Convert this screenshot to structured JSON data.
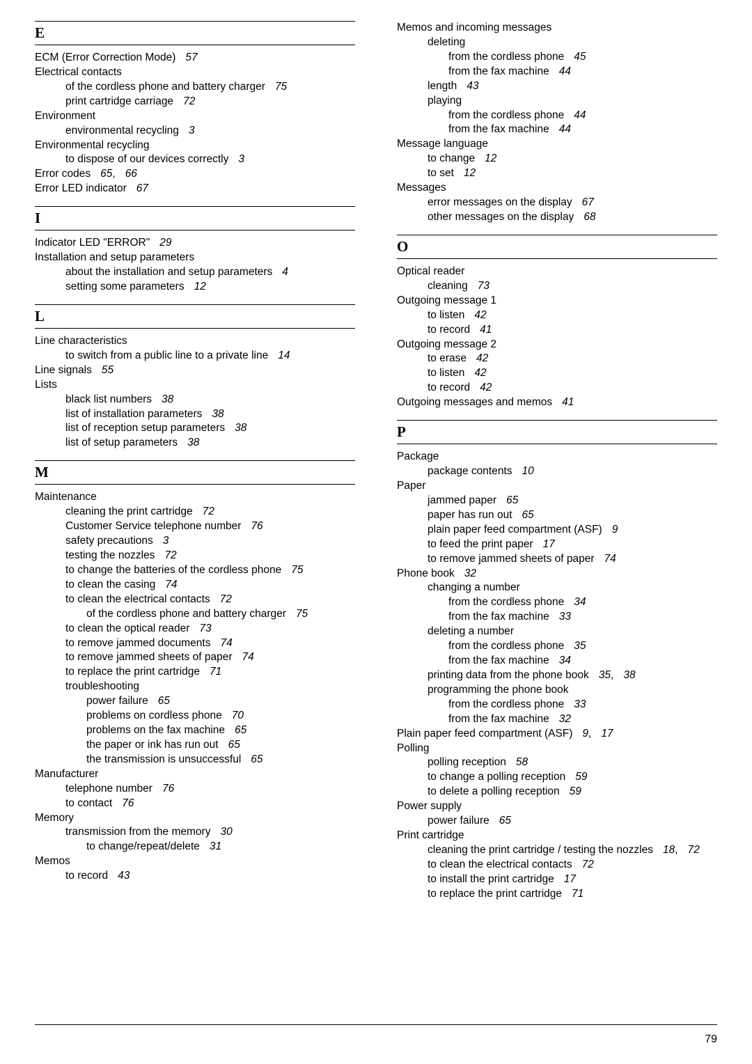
{
  "footer_page": "79",
  "left": [
    {
      "type": "letter",
      "text": "E",
      "first": true
    },
    {
      "type": "l0",
      "text": "ECM (Error Correction Mode)",
      "pg": "57"
    },
    {
      "type": "l0",
      "text": "Electrical contacts"
    },
    {
      "type": "l1",
      "text": "of the cordless phone and battery charger",
      "pg": "75"
    },
    {
      "type": "l1",
      "text": "print cartridge carriage",
      "pg": "72"
    },
    {
      "type": "l0",
      "text": "Environment"
    },
    {
      "type": "l1",
      "text": "environmental recycling",
      "pg": "3"
    },
    {
      "type": "l0",
      "text": "Environmental recycling"
    },
    {
      "type": "l1",
      "text": "to dispose of our devices correctly",
      "pg": "3"
    },
    {
      "type": "l0",
      "text": "Error codes",
      "pg": "65, 66"
    },
    {
      "type": "l0",
      "text": "Error LED indicator",
      "pg": "67"
    },
    {
      "type": "letter",
      "text": "I"
    },
    {
      "type": "l0",
      "text": "Indicator LED  \"ERROR\"",
      "pg": "29"
    },
    {
      "type": "l0",
      "text": "Installation and setup parameters"
    },
    {
      "type": "l1",
      "text": "about the installation and setup parameters",
      "pg": "4"
    },
    {
      "type": "l1",
      "text": "setting some parameters",
      "pg": "12"
    },
    {
      "type": "letter",
      "text": "L"
    },
    {
      "type": "l0",
      "text": "Line characteristics"
    },
    {
      "type": "l1",
      "text": "to switch from a public line to a private line",
      "pg": "14"
    },
    {
      "type": "l0",
      "text": "Line signals",
      "pg": "55"
    },
    {
      "type": "l0",
      "text": "Lists"
    },
    {
      "type": "l1",
      "text": "black list numbers",
      "pg": "38"
    },
    {
      "type": "l1",
      "text": "list of installation parameters",
      "pg": "38"
    },
    {
      "type": "l1",
      "text": "list of reception setup parameters",
      "pg": "38"
    },
    {
      "type": "l1",
      "text": "list of setup parameters",
      "pg": "38"
    },
    {
      "type": "letter",
      "text": "M"
    },
    {
      "type": "l0",
      "text": "Maintenance"
    },
    {
      "type": "l1",
      "text": "cleaning the print cartridge",
      "pg": "72"
    },
    {
      "type": "l1",
      "text": "Customer Service telephone number",
      "pg": "76"
    },
    {
      "type": "l1",
      "text": "safety precautions",
      "pg": "3"
    },
    {
      "type": "l1",
      "text": "testing the nozzles",
      "pg": "72"
    },
    {
      "type": "l1",
      "text": "to change the batteries of the cordless phone",
      "pg": "75"
    },
    {
      "type": "l1",
      "text": "to clean the casing",
      "pg": "74"
    },
    {
      "type": "l1",
      "text": "to clean the electrical contacts",
      "pg": "72"
    },
    {
      "type": "l2",
      "text": "of the cordless phone and battery charger",
      "pg": "75"
    },
    {
      "type": "l1",
      "text": "to clean the optical reader",
      "pg": "73"
    },
    {
      "type": "l1",
      "text": "to remove jammed documents",
      "pg": "74"
    },
    {
      "type": "l1",
      "text": "to remove jammed sheets of paper",
      "pg": "74"
    },
    {
      "type": "l1",
      "text": "to replace the print cartridge",
      "pg": "71"
    },
    {
      "type": "l1",
      "text": "troubleshooting"
    },
    {
      "type": "l2",
      "text": "power failure",
      "pg": "65"
    },
    {
      "type": "l2",
      "text": "problems on cordless phone",
      "pg": "70"
    },
    {
      "type": "l2",
      "text": "problems on the fax machine",
      "pg": "65"
    },
    {
      "type": "l2",
      "text": "the paper or ink has run out",
      "pg": "65"
    },
    {
      "type": "l2",
      "text": "the transmission is unsuccessful",
      "pg": "65"
    },
    {
      "type": "l0",
      "text": "Manufacturer"
    },
    {
      "type": "l1",
      "text": "telephone number",
      "pg": "76"
    },
    {
      "type": "l1",
      "text": "to contact",
      "pg": "76"
    },
    {
      "type": "l0",
      "text": "Memory"
    },
    {
      "type": "l1",
      "text": "transmission from the memory",
      "pg": "30"
    },
    {
      "type": "l2",
      "text": "to change/repeat/delete",
      "pg": "31"
    },
    {
      "type": "l0",
      "text": "Memos"
    },
    {
      "type": "l1",
      "text": "to record",
      "pg": "43"
    }
  ],
  "right": [
    {
      "type": "l0",
      "text": "Memos and incoming messages"
    },
    {
      "type": "l1",
      "text": "deleting"
    },
    {
      "type": "l2",
      "text": "from the cordless phone",
      "pg": "45"
    },
    {
      "type": "l2",
      "text": "from the fax machine",
      "pg": "44"
    },
    {
      "type": "l1",
      "text": "length",
      "pg": "43"
    },
    {
      "type": "l1",
      "text": "playing"
    },
    {
      "type": "l2",
      "text": "from the cordless phone",
      "pg": "44"
    },
    {
      "type": "l2",
      "text": "from the fax machine",
      "pg": "44"
    },
    {
      "type": "l0",
      "text": "Message language"
    },
    {
      "type": "l1",
      "text": "to change",
      "pg": "12"
    },
    {
      "type": "l1",
      "text": "to set",
      "pg": "12"
    },
    {
      "type": "l0",
      "text": "Messages"
    },
    {
      "type": "l1",
      "text": "error messages on the display",
      "pg": "67"
    },
    {
      "type": "l1",
      "text": "other messages on the display",
      "pg": "68"
    },
    {
      "type": "letter",
      "text": "O"
    },
    {
      "type": "l0",
      "text": "Optical reader"
    },
    {
      "type": "l1",
      "text": "cleaning",
      "pg": "73"
    },
    {
      "type": "l0",
      "text": "Outgoing message 1"
    },
    {
      "type": "l1",
      "text": "to listen",
      "pg": "42"
    },
    {
      "type": "l1",
      "text": "to record",
      "pg": "41"
    },
    {
      "type": "l0",
      "text": "Outgoing message 2"
    },
    {
      "type": "l1",
      "text": "to erase",
      "pg": "42"
    },
    {
      "type": "l1",
      "text": "to listen",
      "pg": "42"
    },
    {
      "type": "l1",
      "text": "to record",
      "pg": "42"
    },
    {
      "type": "l0",
      "text": "Outgoing messages and memos",
      "pg": "41"
    },
    {
      "type": "letter",
      "text": "P"
    },
    {
      "type": "l0",
      "text": "Package"
    },
    {
      "type": "l1",
      "text": "package contents",
      "pg": "10"
    },
    {
      "type": "l0",
      "text": "Paper"
    },
    {
      "type": "l1",
      "text": "jammed paper",
      "pg": "65"
    },
    {
      "type": "l1",
      "text": "paper has run out",
      "pg": "65"
    },
    {
      "type": "l1",
      "text": "plain paper feed compartment (ASF)",
      "pg": "9"
    },
    {
      "type": "l1",
      "text": "to feed the print paper",
      "pg": "17"
    },
    {
      "type": "l1",
      "text": "to remove jammed sheets of paper",
      "pg": "74"
    },
    {
      "type": "l0",
      "text": "Phone book",
      "pg": "32"
    },
    {
      "type": "l1",
      "text": "changing a number"
    },
    {
      "type": "l2",
      "text": "from the cordless phone",
      "pg": "34"
    },
    {
      "type": "l2",
      "text": "from the fax machine",
      "pg": "33"
    },
    {
      "type": "l1",
      "text": "deleting a number"
    },
    {
      "type": "l2",
      "text": "from the cordless phone",
      "pg": "35"
    },
    {
      "type": "l2",
      "text": "from the fax machine",
      "pg": "34"
    },
    {
      "type": "l1",
      "text": "printing data from the phone book",
      "pg": "35, 38"
    },
    {
      "type": "l1",
      "text": "programming the phone book"
    },
    {
      "type": "l2",
      "text": "from the cordless phone",
      "pg": "33"
    },
    {
      "type": "l2",
      "text": "from the fax machine",
      "pg": "32"
    },
    {
      "type": "l0",
      "text": "Plain paper feed compartment (ASF)",
      "pg": "9, 17"
    },
    {
      "type": "l0",
      "text": "Polling"
    },
    {
      "type": "l1",
      "text": "polling reception",
      "pg": "58"
    },
    {
      "type": "l1",
      "text": "to change a polling reception",
      "pg": "59"
    },
    {
      "type": "l1",
      "text": "to delete a polling reception",
      "pg": "59"
    },
    {
      "type": "l0",
      "text": "Power supply"
    },
    {
      "type": "l1",
      "text": "power failure",
      "pg": "65"
    },
    {
      "type": "l0",
      "text": "Print cartridge"
    },
    {
      "type": "l1",
      "text": "cleaning the print cartridge / testing the nozzles",
      "pg": "18, 72"
    },
    {
      "type": "l1",
      "text": "to clean the electrical contacts",
      "pg": "72"
    },
    {
      "type": "l1",
      "text": "to install the print cartridge",
      "pg": "17"
    },
    {
      "type": "l1",
      "text": "to replace the print cartridge",
      "pg": "71"
    }
  ]
}
